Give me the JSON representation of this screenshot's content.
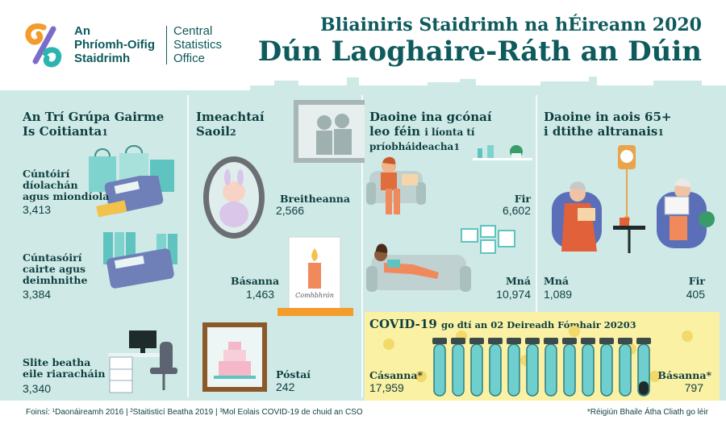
{
  "header": {
    "org_ga_1": "An",
    "org_ga_2": "Phríomh-Oifig",
    "org_ga_3": "Staidrimh",
    "org_en_1": "Central",
    "org_en_2": "Statistics",
    "org_en_3": "Office",
    "title_line1": "Bliainiris Staidrimh na hÉireann 2020",
    "title_line2": "Dún Laoghaire-Ráth an Dúin"
  },
  "occupations": {
    "heading_1": "An Trí Grúpa Gairme",
    "heading_2": "Is Coitianta",
    "heading_sup": "1",
    "items": [
      {
        "label_1": "Cúntóirí",
        "label_2": "díolachán",
        "label_3": "agus miondíola",
        "value": "3,413"
      },
      {
        "label_1": "Cúntasóirí",
        "label_2": "cairte agus",
        "label_3": "deimhnithe",
        "value": "3,384"
      },
      {
        "label_1": "Slite beatha",
        "label_2": "eile riaracháin",
        "label_3": "",
        "value": "3,340"
      }
    ]
  },
  "life_events": {
    "heading_1": "Imeachtaí",
    "heading_2": "Saoil",
    "heading_sup": "2",
    "births_label": "Breitheanna",
    "births_value": "2,566",
    "deaths_label": "Básanna",
    "deaths_value": "1,463",
    "marriages_label": "Póstaí",
    "marriages_value": "242",
    "card_text": "Comhbhrón"
  },
  "living_alone": {
    "heading_1": "Daoine ina gcónaí",
    "heading_2": "leo féin",
    "heading_2b": "i líonta tí",
    "heading_3": "príobháideacha",
    "heading_sup": "1",
    "men_label": "Fir",
    "men_value": "6,602",
    "women_label": "Mná",
    "women_value": "10,974"
  },
  "nursing_homes": {
    "heading_1": "Daoine in aois 65+",
    "heading_2": "i dtithe altranais",
    "heading_sup": "1",
    "women_label": "Mná",
    "women_value": "1,089",
    "men_label": "Fir",
    "men_value": "405"
  },
  "covid": {
    "heading": "COVID-19",
    "heading_rest": "go dtí an 02 Deireadh Fómhair 2020",
    "heading_sup": "3",
    "cases_label": "Cásanna*",
    "cases_value": "17,959",
    "deaths_label": "Básanna*",
    "deaths_value": "797",
    "cases_tubes": 11,
    "deaths_tubes": 1
  },
  "footer": {
    "sources": "Foinsí: ¹Daonáireamh 2016 | ²Staitisticí Beatha 2019 | ³Mol Eolais COVID-19 de chuid an CSO",
    "note": "*Réigiún Bhaile Átha Cliath go léir"
  },
  "colors": {
    "teal_dark": "#0e3f40",
    "teal_bg": "#cfe9e6",
    "covid_bg": "#fbf1a4",
    "logo_orange": "#f39c2b",
    "logo_teal": "#2bb5b0"
  }
}
